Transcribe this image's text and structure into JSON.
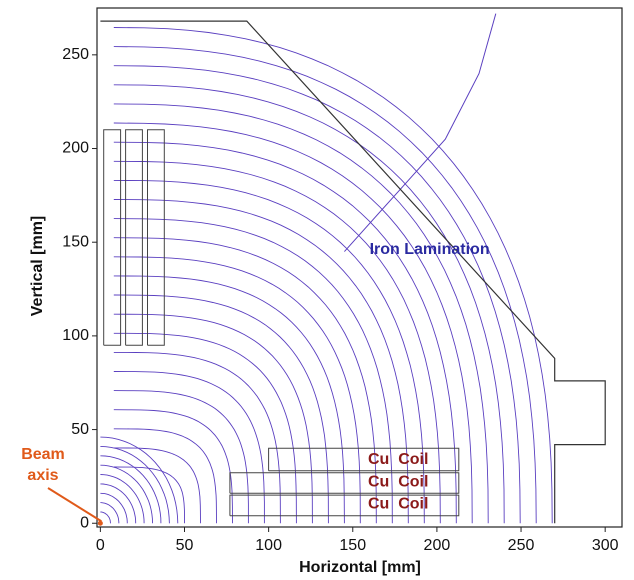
{
  "chart_data": {
    "type": "field-plot",
    "xlabel": "Horizontal [mm]",
    "ylabel": "Vertical [mm]",
    "xlim": [
      -2,
      310
    ],
    "ylim": [
      -2,
      275
    ],
    "xticks": [
      0,
      50,
      100,
      150,
      200,
      250,
      300
    ],
    "yticks": [
      0,
      50,
      100,
      150,
      200,
      250
    ],
    "annotations": [
      "Iron Lamination",
      "Cu  Coil",
      "Cu  Coil",
      "Cu  Coil",
      "Beam axis"
    ]
  }
}
